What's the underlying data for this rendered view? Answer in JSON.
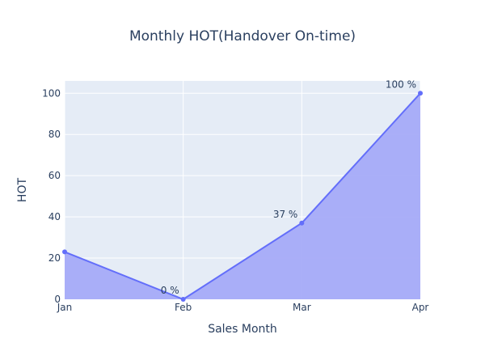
{
  "chart_data": {
    "type": "area",
    "title": "Monthly HOT(Handover On-time)",
    "xlabel": "Sales Month",
    "ylabel": "HOT",
    "categories": [
      "Jan",
      "Feb",
      "Mar",
      "Apr"
    ],
    "values": [
      23,
      0,
      37,
      100
    ],
    "data_labels": [
      "",
      "0 %",
      "37 %",
      "100 %"
    ],
    "ylim": [
      0,
      106
    ],
    "yticks": [
      0,
      20,
      40,
      60,
      80,
      100
    ],
    "grid": true,
    "colors": {
      "plot_bg": "#e5ecf6",
      "grid": "#ffffff",
      "line": "#636efa",
      "fill": "#a5abf8",
      "text": "#2a3f5f"
    }
  }
}
